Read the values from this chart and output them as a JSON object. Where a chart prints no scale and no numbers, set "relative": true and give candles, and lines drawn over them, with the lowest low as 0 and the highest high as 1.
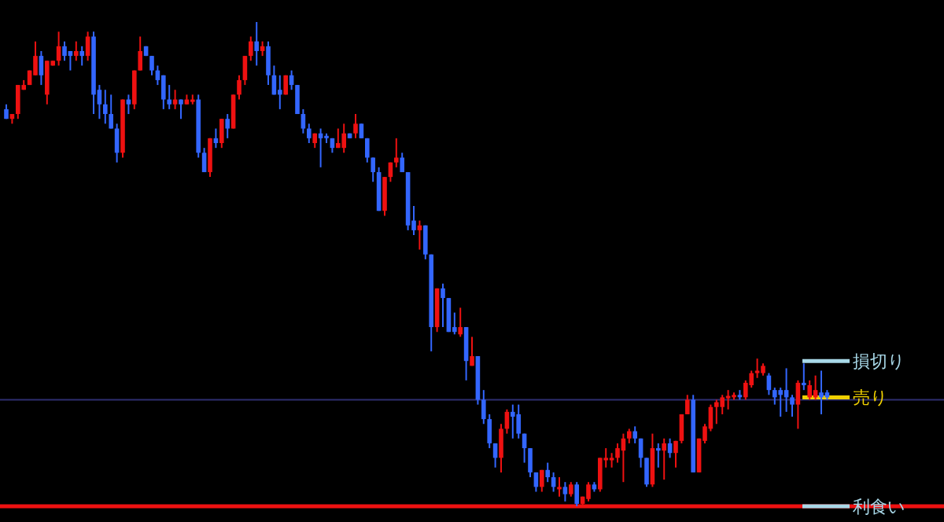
{
  "chart_data": {
    "type": "candlestick",
    "relative": true,
    "categories": [
      null,
      null,
      null,
      null,
      null,
      null,
      null,
      null,
      null,
      null,
      null,
      null,
      null,
      null,
      null,
      null,
      null,
      null,
      null,
      null,
      null,
      null,
      null,
      null,
      null,
      null,
      null,
      null,
      null,
      null,
      null,
      null,
      null,
      null,
      null,
      null,
      null,
      null,
      null,
      null,
      null,
      null,
      null,
      null,
      null,
      null,
      null,
      null,
      null,
      null,
      null,
      null,
      null,
      null,
      null,
      null,
      null,
      null,
      null,
      null,
      null,
      null,
      null,
      null,
      null,
      null,
      null,
      null,
      null,
      null,
      null,
      null,
      null,
      null,
      null,
      null,
      null,
      null,
      null,
      null,
      null,
      null,
      null,
      null,
      null,
      null,
      null,
      null,
      null,
      null,
      null,
      null,
      null,
      null,
      null,
      null,
      null,
      null,
      null,
      null,
      null,
      null,
      null,
      null,
      null,
      null,
      null,
      null,
      null,
      null,
      null,
      null,
      null,
      null,
      null,
      null,
      null,
      null,
      null,
      null,
      null,
      null,
      null,
      null,
      null,
      null,
      null,
      null,
      null,
      null,
      null,
      null,
      null,
      null,
      null,
      null,
      null,
      null,
      null,
      null,
      null,
      null
    ],
    "ohlc": [
      [
        0.82,
        0.83,
        0.8,
        0.8
      ],
      [
        0.8,
        0.81,
        0.79,
        0.81
      ],
      [
        0.81,
        0.87,
        0.8,
        0.87
      ],
      [
        0.86,
        0.88,
        0.86,
        0.87
      ],
      [
        0.87,
        0.9,
        0.87,
        0.9
      ],
      [
        0.89,
        0.96,
        0.89,
        0.93
      ],
      [
        0.93,
        0.94,
        0.87,
        0.89
      ],
      [
        0.85,
        0.92,
        0.83,
        0.92
      ],
      [
        0.91,
        0.92,
        0.91,
        0.92
      ],
      [
        0.92,
        0.98,
        0.91,
        0.95
      ],
      [
        0.95,
        0.96,
        0.92,
        0.93
      ],
      [
        0.94,
        0.94,
        0.9,
        0.93
      ],
      [
        0.93,
        0.96,
        0.92,
        0.94
      ],
      [
        0.94,
        0.95,
        0.91,
        0.93
      ],
      [
        0.93,
        0.98,
        0.92,
        0.97
      ],
      [
        0.97,
        0.98,
        0.81,
        0.85
      ],
      [
        0.86,
        0.87,
        0.8,
        0.83
      ],
      [
        0.83,
        0.86,
        0.79,
        0.81
      ],
      [
        0.81,
        0.85,
        0.78,
        0.78
      ],
      [
        0.78,
        0.79,
        0.71,
        0.73
      ],
      [
        0.73,
        0.84,
        0.72,
        0.84
      ],
      [
        0.84,
        0.85,
        0.81,
        0.83
      ],
      [
        0.83,
        0.9,
        0.82,
        0.9
      ],
      [
        0.9,
        0.97,
        0.9,
        0.94
      ],
      [
        0.95,
        0.95,
        0.93,
        0.93
      ],
      [
        0.93,
        0.93,
        0.89,
        0.9
      ],
      [
        0.9,
        0.91,
        0.87,
        0.88
      ],
      [
        0.89,
        0.89,
        0.82,
        0.84
      ],
      [
        0.84,
        0.87,
        0.82,
        0.83
      ],
      [
        0.83,
        0.86,
        0.82,
        0.84
      ],
      [
        0.84,
        0.84,
        0.8,
        0.83
      ],
      [
        0.83,
        0.85,
        0.83,
        0.84
      ],
      [
        0.835,
        0.85,
        0.83,
        0.84
      ],
      [
        0.84,
        0.85,
        0.72,
        0.73
      ],
      [
        0.73,
        0.74,
        0.69,
        0.69
      ],
      [
        0.69,
        0.76,
        0.68,
        0.76
      ],
      [
        0.76,
        0.78,
        0.74,
        0.75
      ],
      [
        0.75,
        0.8,
        0.74,
        0.8
      ],
      [
        0.8,
        0.81,
        0.76,
        0.78
      ],
      [
        0.78,
        0.85,
        0.78,
        0.85
      ],
      [
        0.85,
        0.89,
        0.84,
        0.88
      ],
      [
        0.88,
        0.93,
        0.87,
        0.93
      ],
      [
        0.93,
        0.97,
        0.92,
        0.96
      ],
      [
        0.96,
        1.0,
        0.91,
        0.94
      ],
      [
        0.94,
        0.96,
        0.93,
        0.95
      ],
      [
        0.95,
        0.96,
        0.87,
        0.89
      ],
      [
        0.89,
        0.91,
        0.85,
        0.85
      ],
      [
        0.86,
        0.89,
        0.82,
        0.85
      ],
      [
        0.85,
        0.89,
        0.85,
        0.89
      ],
      [
        0.89,
        0.9,
        0.86,
        0.87
      ],
      [
        0.87,
        0.87,
        0.81,
        0.81
      ],
      [
        0.81,
        0.82,
        0.77,
        0.78
      ],
      [
        0.78,
        0.79,
        0.75,
        0.76
      ],
      [
        0.75,
        0.77,
        0.74,
        0.77
      ],
      [
        0.77,
        0.78,
        0.7,
        0.76
      ],
      [
        0.765,
        0.77,
        0.75,
        0.76
      ],
      [
        0.76,
        0.76,
        0.73,
        0.74
      ],
      [
        0.74,
        0.78,
        0.74,
        0.75
      ],
      [
        0.74,
        0.79,
        0.73,
        0.77
      ],
      [
        0.77,
        0.77,
        0.76,
        0.76
      ],
      [
        0.77,
        0.81,
        0.76,
        0.79
      ],
      [
        0.79,
        0.79,
        0.76,
        0.76
      ],
      [
        0.76,
        0.76,
        0.71,
        0.72
      ],
      [
        0.72,
        0.72,
        0.67,
        0.69
      ],
      [
        0.69,
        0.7,
        0.61,
        0.61
      ],
      [
        0.61,
        0.68,
        0.6,
        0.68
      ],
      [
        0.68,
        0.71,
        0.67,
        0.71
      ],
      [
        0.71,
        0.76,
        0.7,
        0.72
      ],
      [
        0.72,
        0.73,
        0.69,
        0.69
      ],
      [
        0.69,
        0.69,
        0.57,
        0.58
      ],
      [
        0.59,
        0.62,
        0.56,
        0.57
      ],
      [
        0.57,
        0.59,
        0.53,
        0.58
      ],
      [
        0.58,
        0.58,
        0.51,
        0.52
      ],
      [
        0.52,
        0.52,
        0.32,
        0.37
      ],
      [
        0.37,
        0.45,
        0.36,
        0.45
      ],
      [
        0.45,
        0.46,
        0.37,
        0.43
      ],
      [
        0.43,
        0.43,
        0.36,
        0.36
      ],
      [
        0.37,
        0.4,
        0.355,
        0.36
      ],
      [
        0.355,
        0.41,
        0.35,
        0.37
      ],
      [
        0.37,
        0.37,
        0.26,
        0.3
      ],
      [
        0.29,
        0.35,
        0.29,
        0.31
      ],
      [
        0.31,
        0.31,
        0.21,
        0.22
      ],
      [
        0.22,
        0.24,
        0.17,
        0.18
      ],
      [
        0.18,
        0.19,
        0.12,
        0.13
      ],
      [
        0.13,
        0.13,
        0.08,
        0.1
      ],
      [
        0.1,
        0.17,
        0.07,
        0.16
      ],
      [
        0.16,
        0.2,
        0.15,
        0.195
      ],
      [
        0.195,
        0.21,
        0.14,
        0.185
      ],
      [
        0.19,
        0.21,
        0.14,
        0.15
      ],
      [
        0.15,
        0.15,
        0.09,
        0.12
      ],
      [
        0.12,
        0.12,
        0.06,
        0.07
      ],
      [
        0.07,
        0.07,
        0.03,
        0.04
      ],
      [
        0.04,
        0.075,
        0.03,
        0.075
      ],
      [
        0.075,
        0.09,
        0.05,
        0.06
      ],
      [
        0.06,
        0.07,
        0.03,
        0.04
      ],
      [
        0.035,
        0.06,
        0.02,
        0.04
      ],
      [
        0.04,
        0.05,
        0.01,
        0.025
      ],
      [
        0.025,
        0.05,
        0.02,
        0.045
      ],
      [
        0.045,
        0.05,
        0.0,
        0.005
      ],
      [
        0.005,
        0.02,
        0.0,
        0.02
      ],
      [
        0.015,
        0.05,
        0.01,
        0.045
      ],
      [
        0.045,
        0.05,
        0.03,
        0.035
      ],
      [
        0.035,
        0.1,
        0.03,
        0.1
      ],
      [
        0.095,
        0.12,
        0.08,
        0.1
      ],
      [
        0.095,
        0.11,
        0.08,
        0.1
      ],
      [
        0.1,
        0.13,
        0.09,
        0.12
      ],
      [
        0.115,
        0.15,
        0.05,
        0.14
      ],
      [
        0.14,
        0.16,
        0.13,
        0.155
      ],
      [
        0.155,
        0.165,
        0.13,
        0.14
      ],
      [
        0.14,
        0.14,
        0.08,
        0.1
      ],
      [
        0.1,
        0.1,
        0.04,
        0.045
      ],
      [
        0.045,
        0.15,
        0.04,
        0.12
      ],
      [
        0.12,
        0.13,
        0.08,
        0.115
      ],
      [
        0.115,
        0.14,
        0.055,
        0.13
      ],
      [
        0.13,
        0.14,
        0.1,
        0.11
      ],
      [
        0.11,
        0.135,
        0.08,
        0.135
      ],
      [
        0.135,
        0.19,
        0.13,
        0.19
      ],
      [
        0.19,
        0.23,
        0.19,
        0.22
      ],
      [
        0.22,
        0.23,
        0.07,
        0.07
      ],
      [
        0.07,
        0.14,
        0.07,
        0.14
      ],
      [
        0.135,
        0.17,
        0.13,
        0.165
      ],
      [
        0.16,
        0.21,
        0.155,
        0.205
      ],
      [
        0.205,
        0.22,
        0.17,
        0.215
      ],
      [
        0.205,
        0.23,
        0.19,
        0.225
      ],
      [
        0.225,
        0.24,
        0.2,
        0.228
      ],
      [
        0.225,
        0.235,
        0.22,
        0.23
      ],
      [
        0.23,
        0.24,
        0.22,
        0.228
      ],
      [
        0.225,
        0.26,
        0.22,
        0.255
      ],
      [
        0.25,
        0.28,
        0.245,
        0.275
      ],
      [
        0.275,
        0.305,
        0.265,
        0.28
      ],
      [
        0.275,
        0.295,
        0.27,
        0.29
      ],
      [
        0.27,
        0.275,
        0.23,
        0.24
      ],
      [
        0.24,
        0.245,
        0.21,
        0.225
      ],
      [
        0.24,
        0.245,
        0.185,
        0.23
      ],
      [
        0.24,
        0.285,
        0.195,
        0.225
      ],
      [
        0.225,
        0.23,
        0.185,
        0.21
      ],
      [
        0.21,
        0.26,
        0.16,
        0.255
      ],
      [
        0.255,
        0.295,
        0.24,
        0.25
      ],
      [
        0.225,
        0.26,
        0.22,
        0.25
      ],
      [
        0.225,
        0.27,
        0.22,
        0.24
      ],
      [
        0.235,
        0.28,
        0.19,
        0.225
      ],
      [
        0.235,
        0.24,
        0.22,
        0.225
      ]
    ],
    "colors": [
      "#3366ff",
      "#ee1111",
      "#ee1111",
      "#ee1111",
      "#ee1111",
      "#ee1111",
      "#3366ff",
      "#ee1111",
      "#ee1111",
      "#ee1111",
      "#3366ff",
      "#3366ff",
      "#ee1111",
      "#3366ff",
      "#ee1111",
      "#3366ff",
      "#3366ff",
      "#3366ff",
      "#3366ff",
      "#3366ff",
      "#ee1111",
      "#3366ff",
      "#ee1111",
      "#ee1111",
      "#3366ff",
      "#3366ff",
      "#3366ff",
      "#3366ff",
      "#3366ff",
      "#ee1111",
      "#3366ff",
      "#ee1111",
      "#ee1111",
      "#3366ff",
      "#3366ff",
      "#ee1111",
      "#3366ff",
      "#ee1111",
      "#3366ff",
      "#ee1111",
      "#ee1111",
      "#ee1111",
      "#ee1111",
      "#3366ff",
      "#ee1111",
      "#3366ff",
      "#3366ff",
      "#3366ff",
      "#ee1111",
      "#3366ff",
      "#3366ff",
      "#3366ff",
      "#3366ff",
      "#ee1111",
      "#3366ff",
      "#3366ff",
      "#3366ff",
      "#ee1111",
      "#ee1111",
      "#3366ff",
      "#ee1111",
      "#3366ff",
      "#3366ff",
      "#3366ff",
      "#3366ff",
      "#ee1111",
      "#ee1111",
      "#ee1111",
      "#3366ff",
      "#3366ff",
      "#3366ff",
      "#ee1111",
      "#3366ff",
      "#3366ff",
      "#ee1111",
      "#3366ff",
      "#3366ff",
      "#3366ff",
      "#ee1111",
      "#3366ff",
      "#ee1111",
      "#3366ff",
      "#3366ff",
      "#3366ff",
      "#3366ff",
      "#ee1111",
      "#ee1111",
      "#3366ff",
      "#3366ff",
      "#3366ff",
      "#3366ff",
      "#3366ff",
      "#ee1111",
      "#3366ff",
      "#3366ff",
      "#ee1111",
      "#3366ff",
      "#ee1111",
      "#3366ff",
      "#ee1111",
      "#ee1111",
      "#3366ff",
      "#ee1111",
      "#ee1111",
      "#ee1111",
      "#ee1111",
      "#ee1111",
      "#ee1111",
      "#3366ff",
      "#3366ff",
      "#3366ff",
      "#ee1111",
      "#3366ff",
      "#ee1111",
      "#3366ff",
      "#ee1111",
      "#ee1111",
      "#ee1111",
      "#3366ff",
      "#ee1111",
      "#ee1111",
      "#ee1111",
      "#ee1111",
      "#ee1111",
      "#ee1111",
      "#ee1111",
      "#3366ff",
      "#ee1111",
      "#ee1111",
      "#ee1111",
      "#ee1111",
      "#3366ff",
      "#3366ff",
      "#3366ff",
      "#3366ff",
      "#3366ff",
      "#ee1111",
      "#3366ff",
      "#ee1111",
      "#ee1111",
      "#3366ff",
      "#3366ff"
    ],
    "ref_lines": [
      {
        "axis": "y",
        "value": 0.22,
        "color": "#2e2e70"
      },
      {
        "axis": "y",
        "value": 0.3,
        "label": "損切り",
        "color": "#a8d8e8"
      },
      {
        "axis": "y",
        "value": 0.225,
        "label": "売り",
        "color": "#f0d000"
      },
      {
        "axis": "y",
        "value": 0.0,
        "color": "#ee1111"
      },
      {
        "axis": "y",
        "value": 0.0,
        "label": "利食い",
        "color": "#a8d8e8"
      }
    ]
  }
}
